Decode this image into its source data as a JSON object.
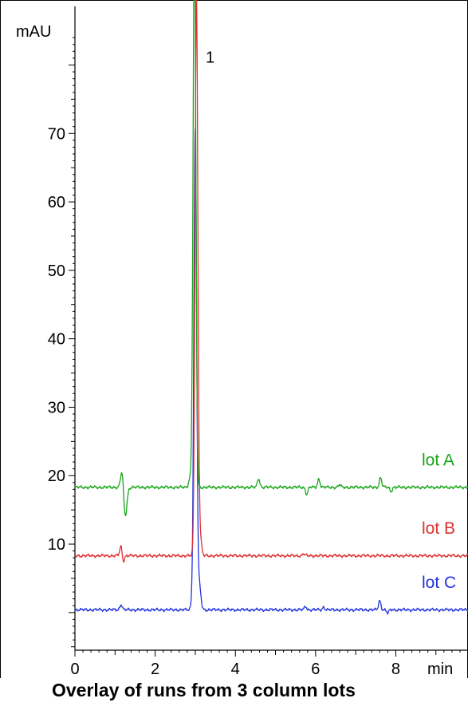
{
  "chart_data": {
    "type": "line",
    "title": "Overlay of runs from 3 column lots",
    "ylabel": "mAU",
    "xlabel": "min",
    "xlim": [
      0,
      9.8
    ],
    "ylim": [
      -5.5,
      86
    ],
    "x_ticks": [
      0,
      2,
      4,
      6,
      8
    ],
    "y_ticks": [
      10,
      20,
      30,
      40,
      50,
      60,
      70
    ],
    "x_tick_labels": [
      "0",
      "2",
      "4",
      "6",
      "8"
    ],
    "y_tick_labels": [
      "10",
      "20",
      "30",
      "40",
      "50",
      "60",
      "70"
    ],
    "peak_label": {
      "text": "1",
      "x": 3.3,
      "y": 81.5
    },
    "series": [
      {
        "name": "lot A",
        "color": "#1aa51a",
        "baseline": 18.3,
        "peak": {
          "x": 2.98,
          "height": 81.5,
          "width": 0.035
        },
        "features": [
          {
            "x": 1.18,
            "amp": 3.0
          },
          {
            "x": 1.25,
            "amp": -4.5
          },
          {
            "x": 2.86,
            "amp": 1.2
          },
          {
            "x": 4.58,
            "amp": 1.3
          },
          {
            "x": 5.78,
            "amp": -1.0
          },
          {
            "x": 6.08,
            "amp": 1.2
          },
          {
            "x": 6.6,
            "amp": 0.4
          },
          {
            "x": 7.62,
            "amp": 1.4
          },
          {
            "x": 7.88,
            "amp": -0.6
          }
        ]
      },
      {
        "name": "lot B",
        "color": "#e03030",
        "baseline": 8.3,
        "peak": {
          "x": 3.03,
          "height": 81.5,
          "width": 0.035
        },
        "features": [
          {
            "x": 1.15,
            "amp": 1.5
          },
          {
            "x": 1.2,
            "amp": -1.0
          },
          {
            "x": 3.12,
            "amp": 2.6
          },
          {
            "x": 5.7,
            "amp": 0.3
          }
        ]
      },
      {
        "name": "lot C",
        "color": "#2233dd",
        "baseline": 0.4,
        "peak": {
          "x": 3.0,
          "height": 70.0,
          "width": 0.035
        },
        "features": [
          {
            "x": 1.15,
            "amp": 0.8
          },
          {
            "x": 2.92,
            "amp": 1.0
          },
          {
            "x": 3.1,
            "amp": 3.5
          },
          {
            "x": 5.75,
            "amp": 0.5
          },
          {
            "x": 6.2,
            "amp": 0.4
          },
          {
            "x": 7.6,
            "amp": 1.3
          },
          {
            "x": 7.8,
            "amp": -0.5
          }
        ]
      }
    ],
    "grid": false,
    "legend": "series labels at right end of traces"
  }
}
